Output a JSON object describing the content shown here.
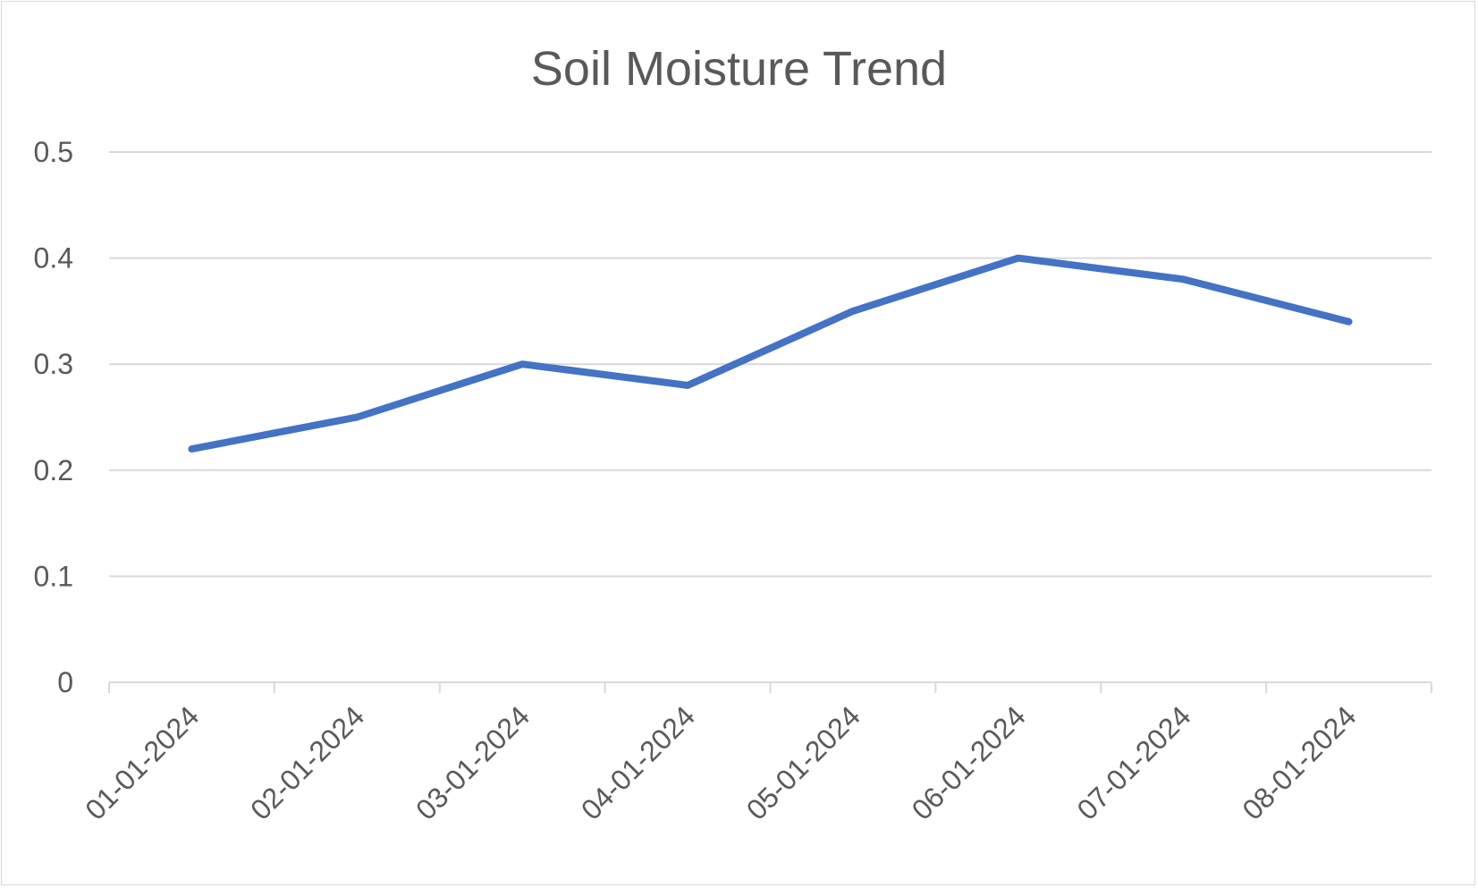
{
  "chart_data": {
    "type": "line",
    "title": "Soil Moisture Trend",
    "xlabel": "",
    "ylabel": "",
    "categories": [
      "01-01-2024",
      "02-01-2024",
      "03-01-2024",
      "04-01-2024",
      "05-01-2024",
      "06-01-2024",
      "07-01-2024",
      "08-01-2024"
    ],
    "series": [
      {
        "values": [
          0.22,
          0.25,
          0.3,
          0.28,
          0.35,
          0.4,
          0.38,
          0.34
        ],
        "color": "#4472c4"
      }
    ],
    "ylim": [
      0,
      0.5
    ],
    "yticks": [
      "0",
      "0.1",
      "0.2",
      "0.3",
      "0.4",
      "0.5"
    ],
    "grid": true,
    "legend": "none",
    "colors": {
      "gridline": "#d9d9d9",
      "axis": "#d9d9d9",
      "text": "#595959"
    }
  }
}
